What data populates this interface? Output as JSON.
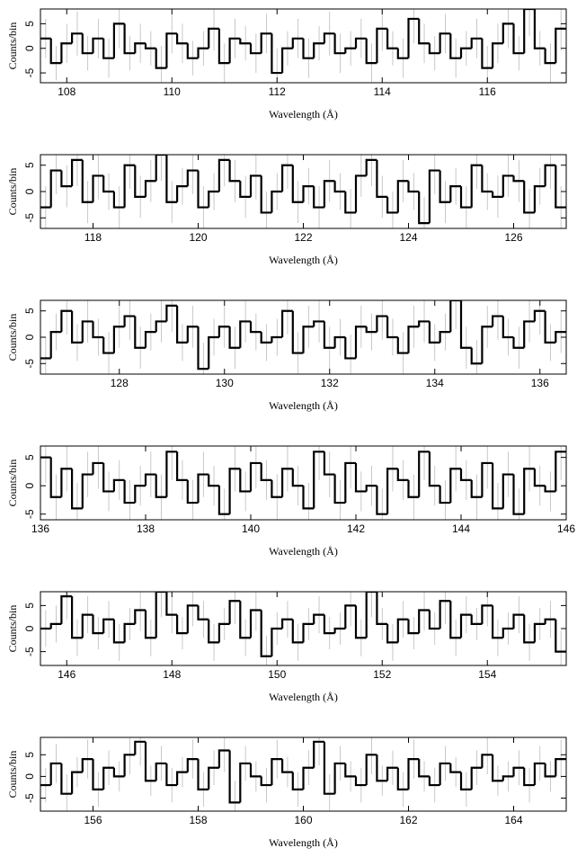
{
  "chart_data": [
    {
      "type": "histogram",
      "xlabel": "Wavelength (Å)",
      "ylabel": "Counts/bin",
      "color": "#000000",
      "error_color": "#bbbbbb",
      "xlim": [
        107.5,
        117.5
      ],
      "ylim": [
        -7,
        8
      ],
      "xticks": [
        108,
        110,
        112,
        114,
        116
      ],
      "yticks": [
        -5,
        0,
        5
      ],
      "bins": [
        107.5,
        107.7,
        107.9,
        108.1,
        108.3,
        108.5,
        108.7,
        108.9,
        109.1,
        109.3,
        109.5,
        109.7,
        109.9,
        110.1,
        110.3,
        110.5,
        110.7,
        110.9,
        111.1,
        111.3,
        111.5,
        111.7,
        111.9,
        112.1,
        112.3,
        112.5,
        112.7,
        112.9,
        113.1,
        113.3,
        113.5,
        113.7,
        113.9,
        114.1,
        114.3,
        114.5,
        114.7,
        114.9,
        115.1,
        115.3,
        115.5,
        115.7,
        115.9,
        116.1,
        116.3,
        116.5,
        116.7,
        116.9,
        117.1,
        117.3,
        117.5
      ],
      "values": [
        2,
        -3,
        1,
        3,
        -1,
        2,
        -2,
        5,
        -1,
        1,
        0,
        -4,
        3,
        1,
        -2,
        0,
        4,
        -3,
        2,
        1,
        -1,
        3,
        -5,
        0,
        2,
        -2,
        1,
        3,
        -1,
        0,
        2,
        -3,
        4,
        0,
        -2,
        6,
        1,
        -1,
        3,
        -2,
        0,
        2,
        -4,
        1,
        5,
        -1,
        8,
        0,
        -3,
        4
      ],
      "errors": [
        4,
        3.5,
        4,
        4.5,
        3.5,
        4,
        4,
        5,
        3.5,
        4,
        3.5,
        4.5,
        4,
        4,
        3.5,
        3.5,
        4.5,
        4,
        4,
        3.5,
        4,
        4,
        5,
        3.5,
        4,
        4,
        3.5,
        4.5,
        4,
        3.5,
        4,
        4,
        4.5,
        3.5,
        4,
        5,
        4,
        3.5,
        4,
        4,
        3.5,
        4,
        4.5,
        4,
        5,
        3.5,
        5.5,
        3.5,
        4,
        4.5
      ]
    },
    {
      "type": "histogram",
      "xlabel": "Wavelength (Å)",
      "ylabel": "Counts/bin",
      "color": "#000000",
      "error_color": "#bbbbbb",
      "xlim": [
        117,
        127
      ],
      "ylim": [
        -7,
        7
      ],
      "xticks": [
        118,
        120,
        122,
        124,
        126
      ],
      "yticks": [
        -5,
        0,
        5
      ],
      "bins": [
        117,
        117.2,
        117.4,
        117.6,
        117.8,
        118,
        118.2,
        118.4,
        118.6,
        118.8,
        119,
        119.2,
        119.4,
        119.6,
        119.8,
        120,
        120.2,
        120.4,
        120.6,
        120.8,
        121,
        121.2,
        121.4,
        121.6,
        121.8,
        122,
        122.2,
        122.4,
        122.6,
        122.8,
        123,
        123.2,
        123.4,
        123.6,
        123.8,
        124,
        124.2,
        124.4,
        124.6,
        124.8,
        125,
        125.2,
        125.4,
        125.6,
        125.8,
        126,
        126.2,
        126.4,
        126.6,
        126.8,
        127
      ],
      "values": [
        -3,
        4,
        1,
        6,
        -2,
        3,
        0,
        -3,
        5,
        -1,
        2,
        7,
        -2,
        1,
        4,
        -3,
        0,
        6,
        2,
        -1,
        3,
        -4,
        0,
        5,
        -2,
        1,
        -3,
        2,
        0,
        -4,
        3,
        6,
        -1,
        -4,
        2,
        0,
        -6,
        4,
        -2,
        1,
        -3,
        5,
        0,
        -1,
        3,
        2,
        -4,
        1,
        5,
        -3
      ],
      "errors": [
        4,
        4.5,
        4,
        5,
        4,
        4.5,
        3.5,
        4,
        4.5,
        4,
        4,
        5,
        4,
        3.5,
        4.5,
        4,
        3.5,
        5,
        4,
        4,
        4.5,
        4,
        3.5,
        4.5,
        4,
        3.5,
        4,
        4,
        3.5,
        4.5,
        4,
        5,
        4,
        4,
        4,
        3.5,
        5,
        4.5,
        4,
        3.5,
        4,
        4.5,
        3.5,
        4,
        4,
        4,
        4.5,
        3.5,
        4.5,
        4
      ]
    },
    {
      "type": "histogram",
      "xlabel": "Wavelength (Å)",
      "ylabel": "Counts/bin",
      "color": "#000000",
      "error_color": "#bbbbbb",
      "xlim": [
        126.5,
        136.5
      ],
      "ylim": [
        -7,
        7
      ],
      "xticks": [
        128,
        130,
        132,
        134,
        136
      ],
      "yticks": [
        -5,
        0,
        5
      ],
      "bins": [
        126.5,
        126.7,
        126.9,
        127.1,
        127.3,
        127.5,
        127.7,
        127.9,
        128.1,
        128.3,
        128.5,
        128.7,
        128.9,
        129.1,
        129.3,
        129.5,
        129.7,
        129.9,
        130.1,
        130.3,
        130.5,
        130.7,
        130.9,
        131.1,
        131.3,
        131.5,
        131.7,
        131.9,
        132.1,
        132.3,
        132.5,
        132.7,
        132.9,
        133.1,
        133.3,
        133.5,
        133.7,
        133.9,
        134.1,
        134.3,
        134.5,
        134.7,
        134.9,
        135.1,
        135.3,
        135.5,
        135.7,
        135.9,
        136.1,
        136.3,
        136.5
      ],
      "values": [
        -4,
        1,
        5,
        -1,
        3,
        0,
        -3,
        2,
        4,
        -2,
        1,
        3,
        6,
        -1,
        2,
        -6,
        0,
        2,
        -2,
        3,
        1,
        -1,
        0,
        5,
        -3,
        2,
        3,
        -2,
        0,
        -4,
        2,
        1,
        4,
        0,
        -3,
        2,
        3,
        -1,
        1,
        7,
        -2,
        -5,
        2,
        4,
        0,
        -2,
        3,
        5,
        -1,
        1
      ],
      "errors": [
        4,
        3.5,
        4.5,
        3.5,
        4,
        3.5,
        4,
        4,
        4.5,
        4,
        3.5,
        4,
        5,
        3.5,
        4,
        5,
        3.5,
        4,
        4,
        4,
        3.5,
        3.5,
        3.5,
        4.5,
        4,
        4,
        4,
        4,
        3.5,
        4.5,
        4,
        3.5,
        4.5,
        3.5,
        4,
        4,
        4,
        3.5,
        3.5,
        5.5,
        4,
        4.5,
        4,
        4.5,
        3.5,
        4,
        4,
        4.5,
        3.5,
        4
      ]
    },
    {
      "type": "histogram",
      "xlabel": "Wavelength (Å)",
      "ylabel": "Counts/bin",
      "color": "#000000",
      "error_color": "#bbbbbb",
      "xlim": [
        136,
        146
      ],
      "ylim": [
        -6,
        7
      ],
      "xticks": [
        136,
        138,
        140,
        142,
        144,
        146
      ],
      "yticks": [
        -5,
        0,
        5
      ],
      "bins": [
        136,
        136.2,
        136.4,
        136.6,
        136.8,
        137,
        137.2,
        137.4,
        137.6,
        137.8,
        138,
        138.2,
        138.4,
        138.6,
        138.8,
        139,
        139.2,
        139.4,
        139.6,
        139.8,
        140,
        140.2,
        140.4,
        140.6,
        140.8,
        141,
        141.2,
        141.4,
        141.6,
        141.8,
        142,
        142.2,
        142.4,
        142.6,
        142.8,
        143,
        143.2,
        143.4,
        143.6,
        143.8,
        144,
        144.2,
        144.4,
        144.6,
        144.8,
        145,
        145.2,
        145.4,
        145.6,
        145.8,
        146
      ],
      "values": [
        5,
        -2,
        3,
        -4,
        2,
        4,
        -1,
        1,
        -3,
        0,
        2,
        -2,
        6,
        1,
        -3,
        2,
        0,
        -5,
        3,
        -1,
        4,
        1,
        -2,
        3,
        0,
        -4,
        6,
        2,
        -3,
        4,
        -1,
        0,
        -5,
        3,
        1,
        -2,
        6,
        0,
        -3,
        3,
        1,
        -2,
        4,
        -4,
        2,
        -5,
        3,
        0,
        -1,
        6
      ],
      "errors": [
        4.5,
        4,
        4,
        4.5,
        4,
        4.5,
        3.5,
        3.5,
        4,
        3.5,
        4,
        4,
        5,
        3.5,
        4,
        4,
        3.5,
        4.5,
        4,
        3.5,
        4.5,
        3.5,
        4,
        4,
        3.5,
        4.5,
        5,
        4,
        4,
        4.5,
        3.5,
        3.5,
        4.5,
        4,
        3.5,
        4,
        5,
        3.5,
        4,
        4,
        3.5,
        4,
        4.5,
        4.5,
        4,
        4.5,
        4,
        3.5,
        3.5,
        5
      ]
    },
    {
      "type": "histogram",
      "xlabel": "Wavelength (Å)",
      "ylabel": "Counts/bin",
      "color": "#000000",
      "error_color": "#bbbbbb",
      "xlim": [
        145.5,
        155.5
      ],
      "ylim": [
        -8,
        8
      ],
      "xticks": [
        146,
        148,
        150,
        152,
        154
      ],
      "yticks": [
        -5,
        0,
        5
      ],
      "bins": [
        145.5,
        145.7,
        145.9,
        146.1,
        146.3,
        146.5,
        146.7,
        146.9,
        147.1,
        147.3,
        147.5,
        147.7,
        147.9,
        148.1,
        148.3,
        148.5,
        148.7,
        148.9,
        149.1,
        149.3,
        149.5,
        149.7,
        149.9,
        150.1,
        150.3,
        150.5,
        150.7,
        150.9,
        151.1,
        151.3,
        151.5,
        151.7,
        151.9,
        152.1,
        152.3,
        152.5,
        152.7,
        152.9,
        153.1,
        153.3,
        153.5,
        153.7,
        153.9,
        154.1,
        154.3,
        154.5,
        154.7,
        154.9,
        155.1,
        155.3,
        155.5
      ],
      "values": [
        0,
        1,
        7,
        -2,
        3,
        -1,
        2,
        -3,
        1,
        4,
        -2,
        8,
        3,
        -1,
        5,
        2,
        -3,
        1,
        6,
        -2,
        4,
        -6,
        0,
        2,
        -3,
        1,
        3,
        -1,
        0,
        5,
        -2,
        8,
        1,
        -3,
        2,
        -1,
        4,
        0,
        6,
        -2,
        3,
        1,
        5,
        -2,
        0,
        3,
        -3,
        1,
        2,
        -5
      ],
      "errors": [
        4,
        4,
        5,
        4,
        4,
        3.5,
        4,
        4,
        3.5,
        4.5,
        4,
        5.5,
        4,
        3.5,
        4.5,
        4,
        4,
        3.5,
        5,
        4,
        4.5,
        4.5,
        3.5,
        4,
        4,
        3.5,
        4,
        3.5,
        3.5,
        4.5,
        4,
        5.5,
        3.5,
        4,
        4,
        3.5,
        4.5,
        3.5,
        5,
        4,
        4,
        3.5,
        4.5,
        4,
        3.5,
        4,
        4,
        3.5,
        4,
        4.5
      ]
    },
    {
      "type": "histogram",
      "xlabel": "Wavelength (Å)",
      "ylabel": "Counts/bin",
      "color": "#000000",
      "error_color": "#bbbbbb",
      "xlim": [
        155,
        165
      ],
      "ylim": [
        -8,
        9
      ],
      "xticks": [
        156,
        158,
        160,
        162,
        164
      ],
      "yticks": [
        -5,
        0,
        5
      ],
      "bins": [
        155,
        155.2,
        155.4,
        155.6,
        155.8,
        156,
        156.2,
        156.4,
        156.6,
        156.8,
        157,
        157.2,
        157.4,
        157.6,
        157.8,
        158,
        158.2,
        158.4,
        158.6,
        158.8,
        159,
        159.2,
        159.4,
        159.6,
        159.8,
        160,
        160.2,
        160.4,
        160.6,
        160.8,
        161,
        161.2,
        161.4,
        161.6,
        161.8,
        162,
        162.2,
        162.4,
        162.6,
        162.8,
        163,
        163.2,
        163.4,
        163.6,
        163.8,
        164,
        164.2,
        164.4,
        164.6,
        164.8,
        165
      ],
      "values": [
        -2,
        3,
        -4,
        1,
        4,
        -3,
        2,
        0,
        5,
        8,
        -1,
        3,
        -2,
        1,
        4,
        -3,
        2,
        6,
        -6,
        3,
        0,
        -2,
        4,
        1,
        -3,
        2,
        8,
        -4,
        3,
        0,
        -2,
        5,
        -1,
        2,
        -3,
        4,
        0,
        -2,
        3,
        1,
        -3,
        2,
        5,
        -1,
        0,
        2,
        -2,
        3,
        0,
        4
      ],
      "errors": [
        4,
        4.5,
        4.5,
        3.5,
        4.5,
        4,
        4,
        3.5,
        4.5,
        5.5,
        3.5,
        4,
        4,
        3.5,
        4.5,
        4,
        4,
        5,
        5,
        4,
        3.5,
        4,
        4.5,
        3.5,
        4,
        4,
        5.5,
        4.5,
        4,
        3.5,
        4,
        4.5,
        3.5,
        4,
        4,
        4.5,
        3.5,
        4,
        4,
        3.5,
        4,
        4,
        4.5,
        3.5,
        3.5,
        4,
        4,
        4,
        3.5,
        4.5
      ]
    }
  ]
}
